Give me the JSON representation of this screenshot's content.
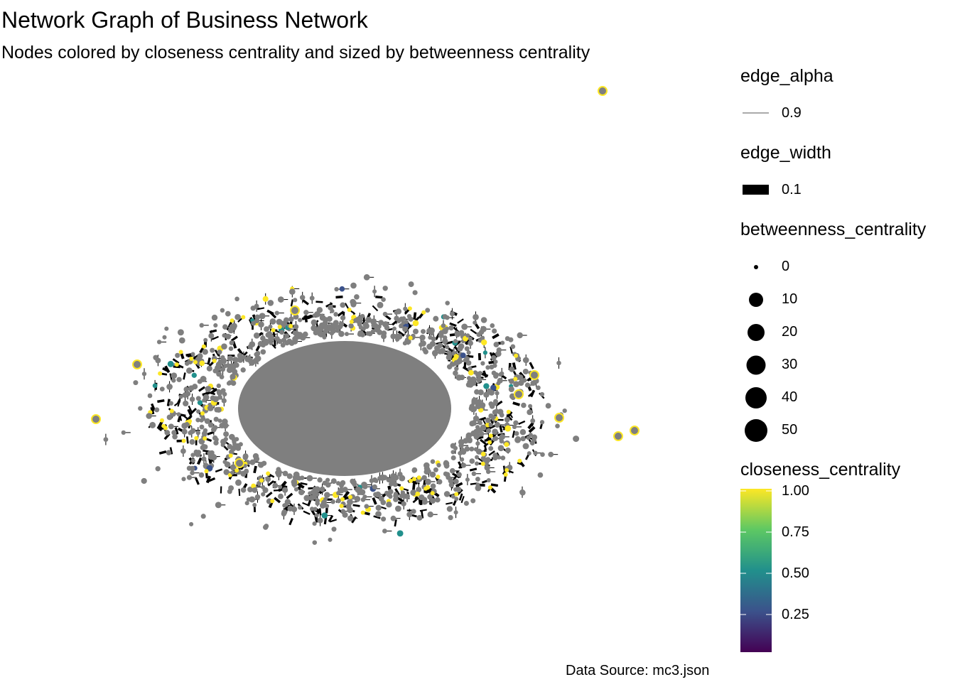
{
  "title": "Network Graph of Business Network",
  "subtitle": "Nodes colored by closeness centrality and sized by betweenness centrality",
  "caption": "Data Source: mc3.json",
  "legend": {
    "edge_alpha": {
      "title": "edge_alpha",
      "value": "0.9"
    },
    "edge_width": {
      "title": "edge_width",
      "value": "0.1"
    },
    "betweenness": {
      "title": "betweenness_centrality",
      "breaks": [
        "0",
        "10",
        "20",
        "30",
        "40",
        "50"
      ]
    },
    "closeness": {
      "title": "closeness_centrality",
      "breaks": [
        "1.00",
        "0.75",
        "0.50",
        "0.25"
      ],
      "colors": [
        "#440154",
        "#3b528b",
        "#21908c",
        "#5dc863",
        "#fde725"
      ]
    }
  },
  "colors": {
    "node_default": "#7f7f7f",
    "edge": "#000000",
    "high_closeness": "#fde725"
  }
}
